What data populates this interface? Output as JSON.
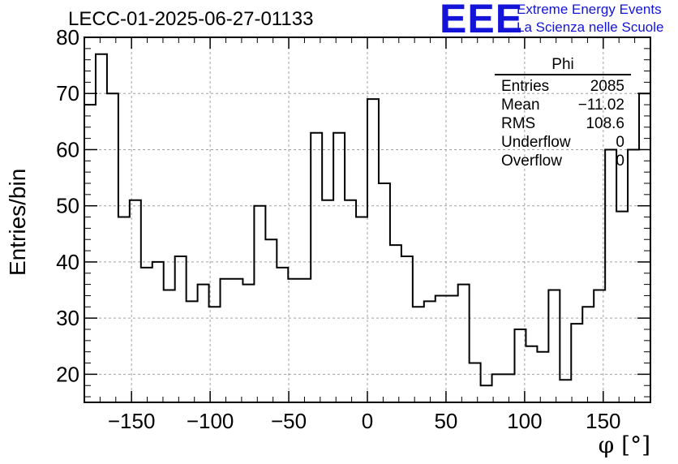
{
  "title": "LECC-01-2025-06-27-01133",
  "logo": {
    "mark": "EEE",
    "line1": "Extreme Energy Events",
    "line2": "La Scienza nelle Scuole",
    "color": "#1414d8"
  },
  "stats_box": {
    "name": "Phi",
    "rows": [
      {
        "label": "Entries",
        "value": "2085"
      },
      {
        "label": "Mean",
        "value": "−11.02"
      },
      {
        "label": "RMS",
        "value": "108.6"
      },
      {
        "label": "Underflow",
        "value": "0"
      },
      {
        "label": "Overflow",
        "value": "0"
      }
    ]
  },
  "chart_data": {
    "type": "bar",
    "histogram": true,
    "title": "LECC-01-2025-06-27-01133",
    "xlabel": "φ [°]",
    "ylabel": "Entries/bin",
    "xlim": [
      -180,
      180
    ],
    "ylim": [
      15,
      80
    ],
    "bin_width": 7.2,
    "x_ticks": [
      -150,
      -100,
      -50,
      0,
      50,
      100,
      150
    ],
    "x_tick_labels": [
      "−150",
      "−100",
      "−50",
      "0",
      "50",
      "100",
      "150"
    ],
    "y_ticks": [
      20,
      30,
      40,
      50,
      60,
      70,
      80
    ],
    "y_tick_labels": [
      "20",
      "30",
      "40",
      "50",
      "60",
      "70",
      "80"
    ],
    "grid": true,
    "values": [
      68,
      77,
      70,
      48,
      51,
      39,
      40,
      35,
      41,
      33,
      36,
      32,
      37,
      37,
      36,
      50,
      44,
      39,
      37,
      37,
      63,
      51,
      63,
      51,
      48,
      69,
      54,
      43,
      41,
      32,
      33,
      34,
      34,
      36,
      22,
      18,
      20,
      20,
      28,
      25,
      24,
      35,
      19,
      29,
      32,
      35,
      60,
      49,
      60,
      70
    ]
  }
}
